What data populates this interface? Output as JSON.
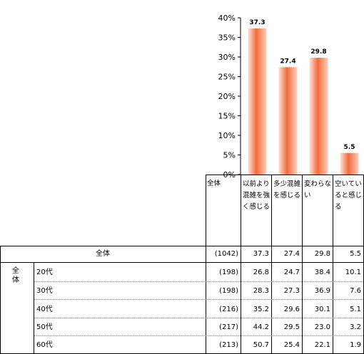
{
  "chart_data": {
    "type": "bar",
    "categories": [
      "以前より混雑を強く感じる",
      "多少混雑を感じる",
      "変わらない",
      "空いていると感じる"
    ],
    "values": [
      37.3,
      27.4,
      29.8,
      5.5
    ],
    "ylim": [
      0,
      40
    ],
    "yticks": [
      "0%",
      "5%",
      "10%",
      "15%",
      "20%",
      "25%",
      "30%",
      "35%",
      "40%"
    ],
    "bar_color": "#f36a3e",
    "grid": false,
    "legend": "none"
  },
  "table": {
    "header_label": "全体",
    "group_label": "全体",
    "rows": [
      {
        "label": "全体",
        "n": "(1042)",
        "values": [
          "37.3",
          "27.4",
          "29.8",
          "5.5"
        ]
      },
      {
        "label": "20代",
        "n": "(198)",
        "values": [
          "26.8",
          "24.7",
          "38.4",
          "10.1"
        ]
      },
      {
        "label": "30代",
        "n": "(198)",
        "values": [
          "28.3",
          "27.3",
          "36.9",
          "7.6"
        ]
      },
      {
        "label": "40代",
        "n": "(216)",
        "values": [
          "35.2",
          "29.6",
          "30.1",
          "5.1"
        ]
      },
      {
        "label": "50代",
        "n": "(217)",
        "values": [
          "44.2",
          "29.5",
          "23.0",
          "3.2"
        ]
      },
      {
        "label": "60代",
        "n": "(213)",
        "values": [
          "50.7",
          "25.4",
          "22.1",
          "1.9"
        ]
      }
    ]
  }
}
